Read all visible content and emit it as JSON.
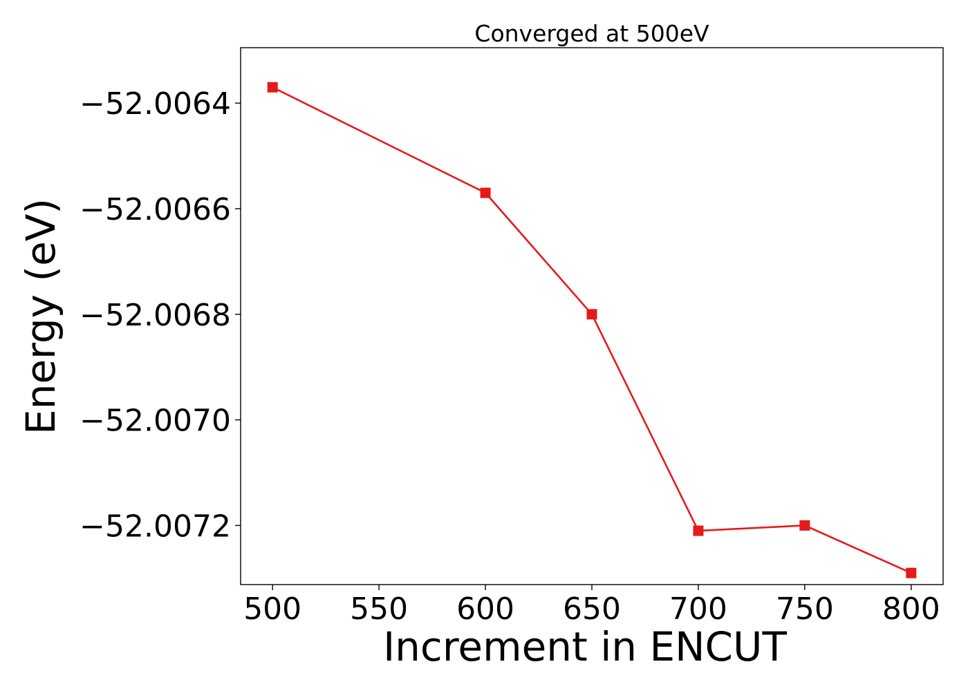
{
  "chart_data": {
    "type": "line",
    "title": "Converged at 500eV",
    "xlabel": "Increment in ENCUT",
    "ylabel": "Energy (eV)",
    "x": [
      500,
      600,
      650,
      700,
      750,
      800
    ],
    "series": [
      {
        "values": [
          -52.00637,
          -52.00657,
          -52.0068,
          -52.00721,
          -52.0072,
          -52.00729
        ],
        "color": "#e41a1c",
        "marker": "square"
      }
    ],
    "xticks": [
      "500",
      "550",
      "600",
      "650",
      "700",
      "750",
      "800"
    ],
    "yticks": [
      "−52.0064",
      "−52.0066",
      "−52.0068",
      "−52.0070",
      "−52.0072"
    ],
    "xlim": [
      485,
      815
    ],
    "ylim": [
      -52.007312,
      -52.006295
    ],
    "grid": false
  }
}
